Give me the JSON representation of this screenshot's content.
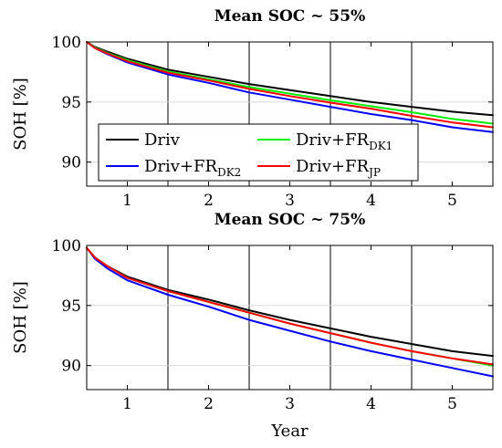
{
  "chart_data": [
    {
      "type": "line",
      "title": "Mean SOC ~ 55%",
      "ylabel": "SOH [%]",
      "xlabel": "",
      "xlim": [
        0.5,
        5.5
      ],
      "ylim": [
        88,
        100
      ],
      "xticks": [
        1,
        2,
        3,
        4,
        5
      ],
      "yticks": [
        90,
        95,
        100
      ],
      "vlines": [
        1.5,
        2.5,
        3.5,
        4.5
      ],
      "legend": true,
      "legend_placement": "lower-left",
      "series": [
        {
          "name": "Driv",
          "name_sub": "",
          "color": "#000000",
          "x": [
            0.5,
            0.6,
            0.75,
            1.0,
            1.5,
            2.0,
            2.5,
            3.0,
            3.5,
            4.0,
            4.5,
            5.0,
            5.5
          ],
          "y": [
            100,
            99.6,
            99.2,
            98.6,
            97.7,
            97.1,
            96.5,
            96.0,
            95.5,
            95.0,
            94.6,
            94.2,
            93.9
          ]
        },
        {
          "name": "Driv+FR",
          "name_sub": "DK2",
          "color": "#0000ff",
          "x": [
            0.5,
            0.6,
            0.75,
            1.0,
            1.5,
            2.0,
            2.5,
            3.0,
            3.5,
            4.0,
            4.5,
            5.0,
            5.5
          ],
          "y": [
            100,
            99.5,
            99.0,
            98.3,
            97.3,
            96.6,
            95.8,
            95.2,
            94.6,
            94.0,
            93.5,
            92.9,
            92.5
          ]
        },
        {
          "name": "Driv+FR",
          "name_sub": "DK1",
          "color": "#00ee00",
          "x": [
            0.5,
            0.6,
            0.75,
            1.0,
            1.5,
            2.0,
            2.5,
            3.0,
            3.5,
            4.0,
            4.5,
            5.0,
            5.5
          ],
          "y": [
            100,
            99.55,
            99.1,
            98.5,
            97.55,
            96.9,
            96.25,
            95.7,
            95.15,
            94.65,
            94.15,
            93.6,
            93.2
          ]
        },
        {
          "name": "Driv+FR",
          "name_sub": "JP",
          "color": "#ff0000",
          "x": [
            0.5,
            0.6,
            0.75,
            1.0,
            1.5,
            2.0,
            2.5,
            3.0,
            3.5,
            4.0,
            4.5,
            5.0,
            5.5
          ],
          "y": [
            100,
            99.5,
            99.05,
            98.4,
            97.45,
            96.8,
            96.1,
            95.5,
            94.95,
            94.45,
            93.85,
            93.3,
            92.9
          ]
        }
      ]
    },
    {
      "type": "line",
      "title": "Mean SOC ~ 75%",
      "ylabel": "SOH [%]",
      "xlabel": "Year",
      "xlim": [
        0.5,
        5.5
      ],
      "ylim": [
        88,
        100
      ],
      "xticks": [
        1,
        2,
        3,
        4,
        5
      ],
      "yticks": [
        90,
        95,
        100
      ],
      "vlines": [
        1.5,
        2.5,
        3.5,
        4.5
      ],
      "legend": false,
      "series": [
        {
          "name": "Driv",
          "name_sub": "",
          "color": "#000000",
          "x": [
            0.5,
            0.6,
            0.75,
            1.0,
            1.5,
            2.0,
            2.5,
            3.0,
            3.5,
            4.0,
            4.5,
            5.0,
            5.5
          ],
          "y": [
            99.8,
            99.0,
            98.3,
            97.4,
            96.3,
            95.5,
            94.6,
            93.8,
            93.1,
            92.4,
            91.8,
            91.2,
            90.8
          ]
        },
        {
          "name": "Driv+FR",
          "name_sub": "DK2",
          "color": "#0000ff",
          "x": [
            0.5,
            0.6,
            0.75,
            1.0,
            1.5,
            2.0,
            2.5,
            3.0,
            3.5,
            4.0,
            4.5,
            5.0,
            5.5
          ],
          "y": [
            99.8,
            98.9,
            98.1,
            97.1,
            95.9,
            94.9,
            93.8,
            92.9,
            92.0,
            91.2,
            90.5,
            89.8,
            89.1
          ]
        },
        {
          "name": "Driv+FR",
          "name_sub": "DK1",
          "color": "#00ee00",
          "x": [
            0.5,
            0.6,
            0.75,
            1.0,
            1.5,
            2.0,
            2.5,
            3.0,
            3.5,
            4.0,
            4.5,
            5.0,
            5.5
          ],
          "y": [
            99.8,
            99.0,
            98.3,
            97.3,
            96.2,
            95.3,
            94.4,
            93.5,
            92.7,
            91.9,
            91.2,
            90.6,
            90.0
          ]
        },
        {
          "name": "Driv+FR",
          "name_sub": "JP",
          "color": "#ff0000",
          "x": [
            0.5,
            0.6,
            0.75,
            1.0,
            1.5,
            2.0,
            2.5,
            3.0,
            3.5,
            4.0,
            4.5,
            5.0,
            5.5
          ],
          "y": [
            99.8,
            99.0,
            98.3,
            97.3,
            96.2,
            95.3,
            94.4,
            93.5,
            92.7,
            91.9,
            91.2,
            90.6,
            90.1
          ]
        }
      ]
    }
  ]
}
